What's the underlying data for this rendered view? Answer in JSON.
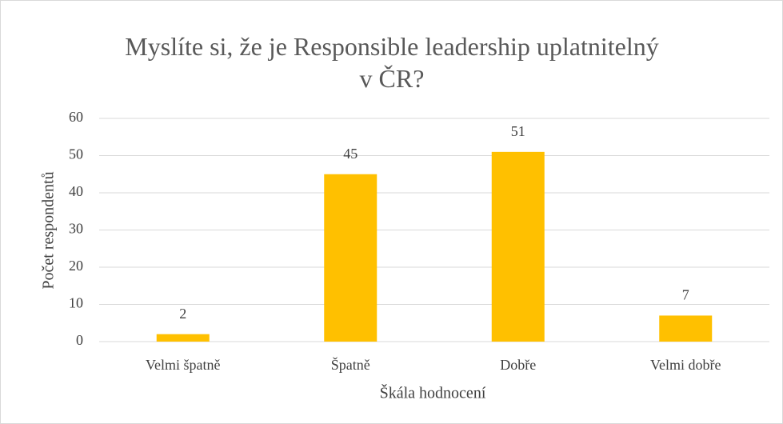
{
  "chart_data": {
    "type": "bar",
    "title": "Myslíte si, že je Responsible leadership uplatnitelný v ČR?",
    "x_label": "Škála hodnocení",
    "y_label": "Počet respondentů",
    "categories": [
      "Velmi špatně",
      "Špatně",
      "Dobře",
      "Velmi dobře"
    ],
    "values": [
      2,
      45,
      51,
      7
    ],
    "color": "#ffc000",
    "ylim": [
      0,
      60
    ],
    "yticks": [
      0,
      10,
      20,
      30,
      40,
      50,
      60
    ],
    "grid": true
  }
}
